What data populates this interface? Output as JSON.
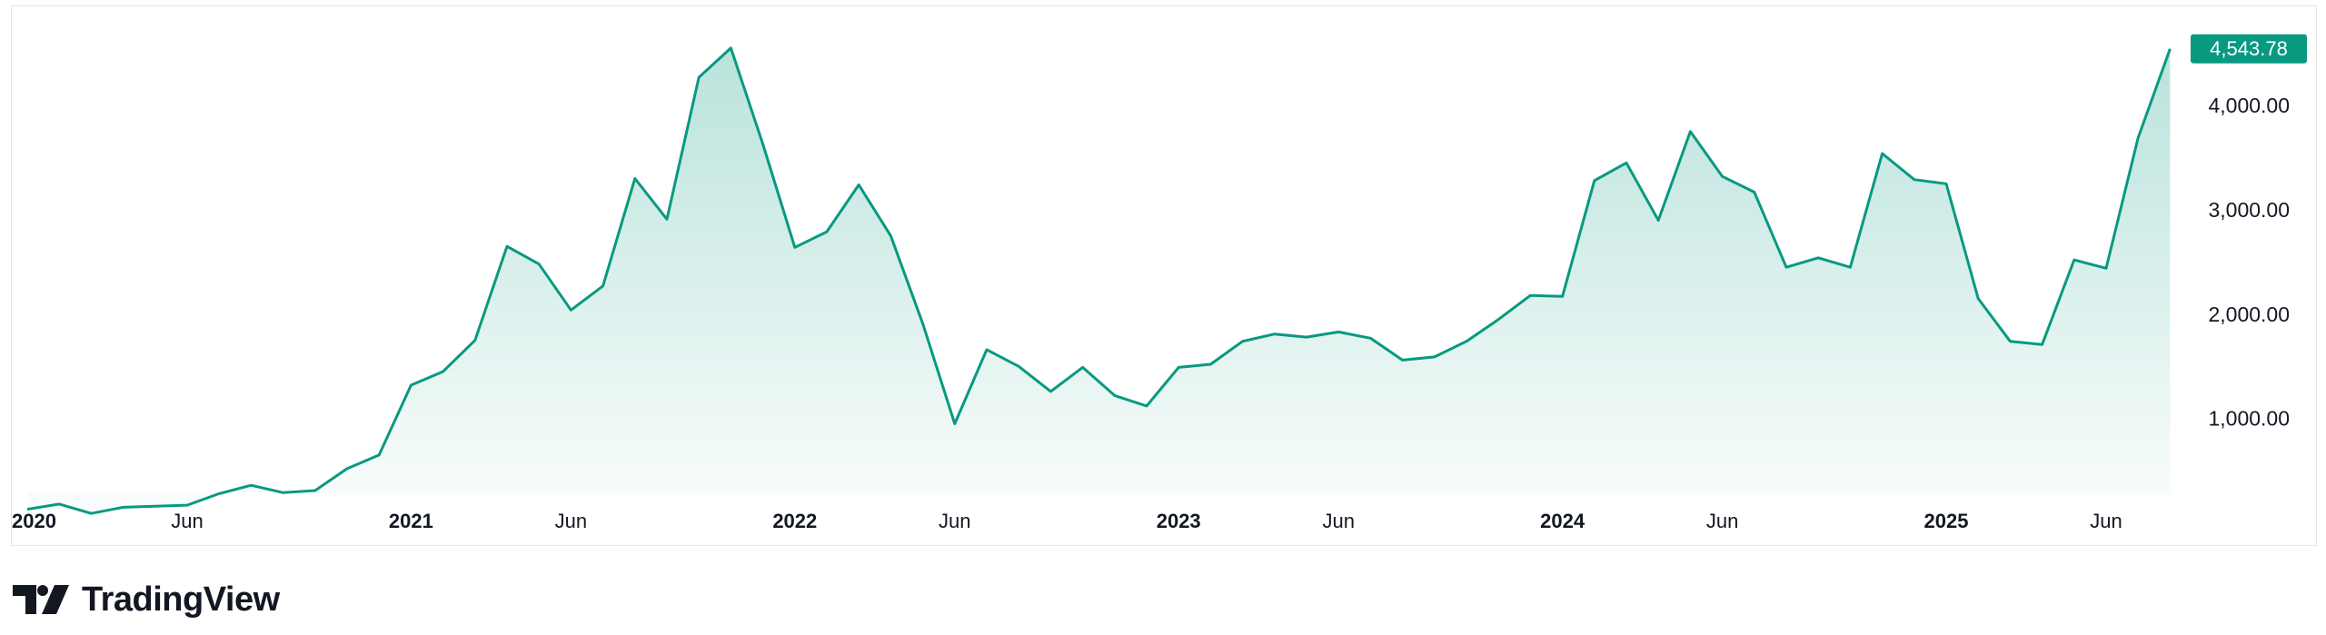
{
  "brand": {
    "name": "TradingView",
    "logo": "tradingview-logo-icon"
  },
  "colors": {
    "line": "#089981",
    "fill": "#089981",
    "badge_bg": "#089981",
    "badge_text": "#ffffff",
    "text": "#131722",
    "border": "#e6e6e6"
  },
  "last_value_label": "4,543.78",
  "chart_data": {
    "type": "area",
    "x": [
      "2020-01",
      "2020-02",
      "2020-03",
      "2020-04",
      "2020-05",
      "2020-06",
      "2020-07",
      "2020-08",
      "2020-09",
      "2020-10",
      "2020-11",
      "2020-12",
      "2021-01",
      "2021-02",
      "2021-03",
      "2021-04",
      "2021-05",
      "2021-06",
      "2021-07",
      "2021-08",
      "2021-09",
      "2021-10",
      "2021-11",
      "2021-12",
      "2022-01",
      "2022-02",
      "2022-03",
      "2022-04",
      "2022-05",
      "2022-06",
      "2022-07",
      "2022-08",
      "2022-09",
      "2022-10",
      "2022-11",
      "2022-12",
      "2023-01",
      "2023-02",
      "2023-03",
      "2023-04",
      "2023-05",
      "2023-06",
      "2023-07",
      "2023-08",
      "2023-09",
      "2023-10",
      "2023-11",
      "2023-12",
      "2024-01",
      "2024-02",
      "2024-03",
      "2024-04",
      "2024-05",
      "2024-06",
      "2024-07",
      "2024-08",
      "2024-09",
      "2024-10",
      "2024-11",
      "2024-12",
      "2025-01",
      "2025-02",
      "2025-03",
      "2025-04",
      "2025-05",
      "2025-06",
      "2025-07",
      "2025-08"
    ],
    "series": [
      {
        "values": [
          130,
          180,
          90,
          150,
          160,
          170,
          280,
          360,
          290,
          310,
          520,
          650,
          1320,
          1450,
          1750,
          2650,
          2480,
          2040,
          2270,
          3300,
          2910,
          4270,
          4550,
          3630,
          2640,
          2790,
          3240,
          2750,
          1910,
          950,
          1660,
          1500,
          1260,
          1490,
          1220,
          1120,
          1490,
          1520,
          1740,
          1810,
          1780,
          1830,
          1770,
          1560,
          1590,
          1740,
          1950,
          2180,
          2170,
          3280,
          3450,
          2900,
          3750,
          3320,
          3170,
          2450,
          2540,
          2450,
          3540,
          3290,
          3250,
          2150,
          1740,
          1710,
          2520,
          2440,
          3690,
          4543.78
        ]
      }
    ],
    "y_ticks": [
      "1,000.00",
      "2,000.00",
      "3,000.00",
      "4,000.00"
    ],
    "x_ticks": [
      "2020",
      "Jun",
      "2021",
      "Jun",
      "2022",
      "Jun",
      "2023",
      "Jun",
      "2024",
      "Jun",
      "2025",
      "Jun"
    ],
    "ylim": [
      -230,
      4950
    ],
    "y_axis_position": "right",
    "grid": false
  }
}
